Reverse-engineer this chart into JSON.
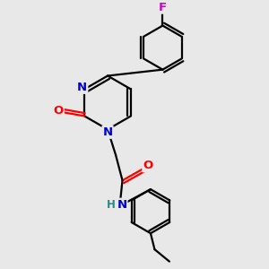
{
  "background_color": "#e8e8e8",
  "atom_colors": {
    "C": "#000000",
    "N": "#0000cd",
    "O": "#ff0000",
    "F": "#cc00cc",
    "H": "#228b8b"
  },
  "bond_color": "#000000",
  "bond_width": 1.6,
  "figsize": [
    3.0,
    3.0
  ],
  "dpi": 100
}
